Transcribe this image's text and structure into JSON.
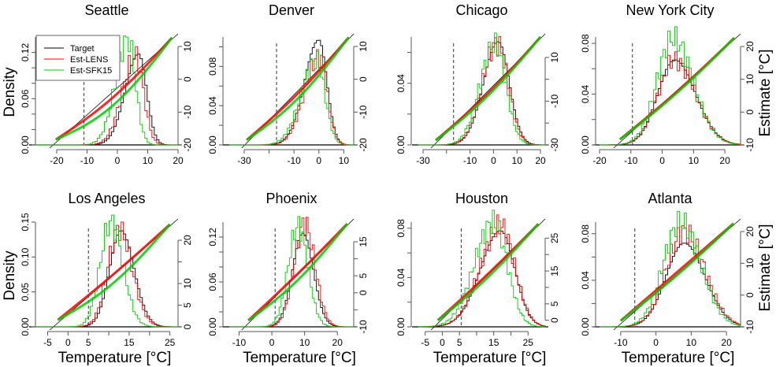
{
  "chart_data": {
    "type": "bar",
    "description": "Histograms of temperature (left axis: Density) overlaid with Q-Q style estimate curves (right axis: Estimate [°C]) for 8 US cities",
    "legend": {
      "placement": "top-left (Seattle panel)",
      "entries": [
        {
          "name": "Target",
          "color": "#000000"
        },
        {
          "name": "Est-LENS",
          "color": "#ff0000"
        },
        {
          "name": "Est-SFK15",
          "color": "#00cc00"
        }
      ]
    },
    "shared": {
      "xlabel": "Temperature [°C]",
      "ylabel_left": "Density",
      "ylabel_right": "Estimate [°C]"
    },
    "panels": [
      {
        "title": "Seattle",
        "xlim": [
          -27,
          20
        ],
        "xticks": [
          -20,
          -10,
          0,
          10,
          20
        ],
        "xtick_labels": [
          "-20",
          "-10",
          "0",
          "10",
          "20"
        ],
        "ylim": [
          0,
          0.14
        ],
        "yticks": [
          0,
          0.02,
          0.04,
          0.06,
          0.08,
          0.1,
          0.12
        ],
        "ytick_labels": [
          "0.00",
          "",
          "",
          "0.06",
          "",
          "",
          "0.12"
        ],
        "right_ylim": [
          -20,
          10
        ],
        "right_ticks": [
          -20,
          -10,
          0,
          10
        ],
        "right_tick_labels": [
          "-20",
          "-10",
          "0",
          "10"
        ],
        "threshold": -11,
        "series": [
          {
            "name": "Target",
            "mean": 7,
            "sd": 3.5,
            "peak": 0.118,
            "skew": -0.7
          },
          {
            "name": "Est-LENS",
            "mean": 6,
            "sd": 3.5,
            "peak": 0.116,
            "skew": -0.7
          },
          {
            "name": "Est-SFK15",
            "mean": 3.5,
            "sd": 3.3,
            "peak": 0.137,
            "skew": -0.7
          }
        ],
        "qq": {
          "red_offset": -3,
          "green_offset": -6
        }
      },
      {
        "title": "Denver",
        "xlim": [
          -36,
          14
        ],
        "xticks": [
          -30,
          -20,
          -10,
          0,
          10
        ],
        "xtick_labels": [
          "-30",
          "",
          "-10",
          "0",
          "10"
        ],
        "ylim": [
          0,
          0.11
        ],
        "yticks": [
          0,
          0.02,
          0.04,
          0.06,
          0.08,
          0.1
        ],
        "ytick_labels": [
          "0.00",
          "",
          "0.04",
          "",
          "0.08",
          ""
        ],
        "right_ylim": [
          -20,
          10
        ],
        "right_ticks": [
          -20,
          -10,
          0,
          10
        ],
        "right_tick_labels": [
          "-20",
          "-10",
          "0",
          "10"
        ],
        "threshold": -17,
        "series": [
          {
            "name": "Target",
            "mean": 0,
            "sd": 4.5,
            "peak": 0.107,
            "skew": -0.8
          },
          {
            "name": "Est-LENS",
            "mean": 0,
            "sd": 4.5,
            "peak": 0.09,
            "skew": -0.8
          },
          {
            "name": "Est-SFK15",
            "mean": -1,
            "sd": 4.8,
            "peak": 0.086,
            "skew": -0.8
          }
        ],
        "qq": {
          "red_offset": -2,
          "green_offset": -4
        }
      },
      {
        "title": "Chicago",
        "xlim": [
          -32,
          22
        ],
        "xticks": [
          -30,
          -20,
          -10,
          0,
          10,
          20
        ],
        "xtick_labels": [
          "-30",
          "",
          "-10",
          "0",
          "10",
          "20"
        ],
        "ylim": [
          0,
          0.07
        ],
        "yticks": [
          0,
          0.02,
          0.04,
          0.06
        ],
        "ytick_labels": [
          "0.00",
          "",
          "0.04",
          ""
        ],
        "right_ylim": [
          -30,
          15
        ],
        "right_ticks": [
          -30,
          -20,
          -10,
          0,
          10
        ],
        "right_tick_labels": [
          "-30",
          "",
          "-10",
          "",
          "10"
        ],
        "threshold": -17,
        "series": [
          {
            "name": "Target",
            "mean": 2,
            "sd": 5.5,
            "peak": 0.067,
            "skew": -0.4
          },
          {
            "name": "Est-LENS",
            "mean": 1.5,
            "sd": 5.5,
            "peak": 0.066,
            "skew": -0.4
          },
          {
            "name": "Est-SFK15",
            "mean": 0.5,
            "sd": 5.5,
            "peak": 0.065,
            "skew": -0.4
          }
        ],
        "qq": {
          "red_offset": -2,
          "green_offset": -3
        }
      },
      {
        "title": "New York City",
        "xlim": [
          -20,
          25
        ],
        "xticks": [
          -20,
          -10,
          0,
          10,
          20
        ],
        "xtick_labels": [
          "-20",
          "-10",
          "0",
          "10",
          "20"
        ],
        "ylim": [
          0,
          0.085
        ],
        "yticks": [
          0,
          0.02,
          0.04,
          0.06,
          0.08
        ],
        "ytick_labels": [
          "0.00",
          "",
          "0.04",
          "",
          "0.08"
        ],
        "right_ylim": [
          -10,
          20
        ],
        "right_ticks": [
          -10,
          0,
          10,
          20
        ],
        "right_tick_labels": [
          "-10",
          "0",
          "10",
          "20"
        ],
        "threshold": -9.5,
        "series": [
          {
            "name": "Target",
            "mean": 4,
            "sd": 6,
            "peak": 0.067,
            "skew": 0.3
          },
          {
            "name": "Est-LENS",
            "mean": 4,
            "sd": 6,
            "peak": 0.067,
            "skew": 0.3
          },
          {
            "name": "Est-SFK15",
            "mean": 3.5,
            "sd": 5.8,
            "peak": 0.084,
            "skew": 0.3
          }
        ],
        "qq": {
          "red_offset": -1,
          "green_offset": -1.5
        }
      },
      {
        "title": "Los Angeles",
        "xlim": [
          -8,
          27
        ],
        "xticks": [
          -5,
          0,
          5,
          10,
          15,
          20,
          25
        ],
        "xtick_labels": [
          "-5",
          "0",
          "5",
          "",
          "15",
          "",
          "25"
        ],
        "ylim": [
          0,
          0.15
        ],
        "yticks": [
          0,
          0.05,
          0.1,
          0.15
        ],
        "ytick_labels": [
          "0.00",
          "0.05",
          "0.10",
          "0.15"
        ],
        "right_ylim": [
          0,
          22
        ],
        "right_ticks": [
          0,
          5,
          10,
          15,
          20
        ],
        "right_tick_labels": [
          "0",
          "5",
          "10",
          "",
          "20"
        ],
        "threshold": 5,
        "series": [
          {
            "name": "Target",
            "mean": 13,
            "sd": 3,
            "peak": 0.138,
            "skew": 0.2
          },
          {
            "name": "Est-LENS",
            "mean": 12.5,
            "sd": 3,
            "peak": 0.14,
            "skew": 0.2
          },
          {
            "name": "Est-SFK15",
            "mean": 10.5,
            "sd": 2.8,
            "peak": 0.15,
            "skew": 0.2
          }
        ],
        "qq": {
          "red_offset": -0.5,
          "green_offset": -3
        }
      },
      {
        "title": "Phoenix",
        "xlim": [
          -13,
          25
        ],
        "xticks": [
          -10,
          0,
          10,
          20
        ],
        "xtick_labels": [
          "-10",
          "0",
          "10",
          "20"
        ],
        "ylim": [
          0,
          0.14
        ],
        "yticks": [
          0,
          0.02,
          0.04,
          0.06,
          0.08,
          0.1,
          0.12
        ],
        "ytick_labels": [
          "0.00",
          "",
          "",
          "0.06",
          "",
          "",
          "0.12"
        ],
        "right_ylim": [
          -10,
          18
        ],
        "right_ticks": [
          -10,
          -5,
          0,
          5,
          10,
          15
        ],
        "right_tick_labels": [
          "-10",
          "",
          "0",
          "5",
          "",
          "15"
        ],
        "threshold": 1,
        "series": [
          {
            "name": "Target",
            "mean": 9.5,
            "sd": 3.2,
            "peak": 0.125,
            "skew": 0
          },
          {
            "name": "Est-LENS",
            "mean": 10,
            "sd": 3.2,
            "peak": 0.138,
            "skew": 0
          },
          {
            "name": "Est-SFK15",
            "mean": 8,
            "sd": 3,
            "peak": 0.135,
            "skew": 0
          }
        ],
        "qq": {
          "red_offset": -0.5,
          "green_offset": -2.5
        }
      },
      {
        "title": "Houston",
        "xlim": [
          -7,
          30
        ],
        "xticks": [
          -5,
          0,
          5,
          10,
          15,
          20,
          25
        ],
        "xtick_labels": [
          "-5",
          "0",
          "5",
          "",
          "15",
          "",
          "25"
        ],
        "ylim": [
          0,
          0.085
        ],
        "yticks": [
          0,
          0.02,
          0.04,
          0.06,
          0.08
        ],
        "ytick_labels": [
          "0.00",
          "",
          "0.04",
          "",
          "0.08"
        ],
        "right_ylim": [
          -2,
          27
        ],
        "right_ticks": [
          0,
          5,
          10,
          15,
          20,
          25
        ],
        "right_tick_labels": [
          "0",
          "5",
          "",
          "15",
          "",
          "25"
        ],
        "threshold": 5.5,
        "series": [
          {
            "name": "Target",
            "mean": 17,
            "sd": 5,
            "peak": 0.078,
            "skew": -0.5
          },
          {
            "name": "Est-LENS",
            "mean": 17,
            "sd": 5,
            "peak": 0.082,
            "skew": -0.5
          },
          {
            "name": "Est-SFK15",
            "mean": 15,
            "sd": 4.8,
            "peak": 0.085,
            "skew": -0.5
          }
        ],
        "qq": {
          "red_offset": -0.5,
          "green_offset": -1.5
        }
      },
      {
        "title": "Atlanta",
        "xlim": [
          -16,
          24
        ],
        "xticks": [
          -10,
          0,
          10,
          20
        ],
        "xtick_labels": [
          "-10",
          "0",
          "10",
          "20"
        ],
        "ylim": [
          0,
          0.09
        ],
        "yticks": [
          0,
          0.02,
          0.04,
          0.06,
          0.08
        ],
        "ytick_labels": [
          "0.00",
          "",
          "0.04",
          "",
          "0.08"
        ],
        "right_ylim": [
          -10,
          20
        ],
        "right_ticks": [
          -10,
          0,
          10,
          20
        ],
        "right_tick_labels": [
          "-10",
          "0",
          "10",
          "20"
        ],
        "threshold": -6,
        "series": [
          {
            "name": "Target",
            "mean": 8,
            "sd": 5.5,
            "peak": 0.072,
            "skew": 0.2
          },
          {
            "name": "Est-LENS",
            "mean": 8,
            "sd": 5.5,
            "peak": 0.082,
            "skew": 0.2
          },
          {
            "name": "Est-SFK15",
            "mean": 7,
            "sd": 5.3,
            "peak": 0.09,
            "skew": 0.2
          }
        ],
        "qq": {
          "red_offset": 0,
          "green_offset": -1
        }
      }
    ]
  }
}
